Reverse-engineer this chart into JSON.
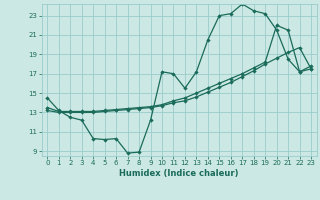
{
  "xlabel": "Humidex (Indice chaleur)",
  "bg_color": "#cce8e4",
  "grid_color": "#99ccca",
  "line_color": "#1a6b5a",
  "xlim": [
    -0.5,
    23.5
  ],
  "ylim": [
    8.5,
    24.2
  ],
  "xticks": [
    0,
    1,
    2,
    3,
    4,
    5,
    6,
    7,
    8,
    9,
    10,
    11,
    12,
    13,
    14,
    15,
    16,
    17,
    18,
    19,
    20,
    21,
    22,
    23
  ],
  "yticks": [
    9,
    11,
    13,
    15,
    17,
    19,
    21,
    23
  ],
  "line1_x": [
    0,
    1,
    2,
    3,
    4,
    5,
    6,
    7,
    8,
    9,
    10,
    11,
    12,
    13,
    14,
    15,
    16,
    17,
    18,
    19,
    20,
    21,
    22,
    23
  ],
  "line1_y": [
    14.5,
    13.2,
    12.5,
    12.2,
    10.3,
    10.2,
    10.3,
    8.8,
    8.9,
    12.2,
    17.2,
    17.0,
    15.5,
    17.2,
    20.5,
    23.0,
    23.2,
    24.2,
    23.5,
    23.2,
    21.5,
    18.5,
    17.2,
    17.5
  ],
  "line2_x": [
    0,
    1,
    2,
    3,
    4,
    5,
    6,
    7,
    8,
    9,
    10,
    11,
    12,
    13,
    14,
    15,
    16,
    17,
    18,
    19,
    20,
    21,
    22,
    23
  ],
  "line2_y": [
    13.5,
    13.1,
    13.1,
    13.1,
    13.1,
    13.2,
    13.3,
    13.4,
    13.5,
    13.6,
    13.8,
    14.2,
    14.5,
    15.0,
    15.5,
    16.0,
    16.5,
    17.0,
    17.6,
    18.2,
    22.0,
    21.5,
    17.2,
    17.8
  ],
  "line3_x": [
    0,
    1,
    2,
    3,
    4,
    5,
    6,
    7,
    8,
    9,
    10,
    11,
    12,
    13,
    14,
    15,
    16,
    17,
    18,
    19,
    20,
    21,
    22,
    23
  ],
  "line3_y": [
    13.2,
    13.0,
    13.0,
    13.0,
    13.0,
    13.1,
    13.2,
    13.3,
    13.4,
    13.5,
    13.7,
    14.0,
    14.2,
    14.6,
    15.1,
    15.6,
    16.1,
    16.7,
    17.3,
    18.0,
    18.6,
    19.2,
    19.7,
    17.5
  ]
}
